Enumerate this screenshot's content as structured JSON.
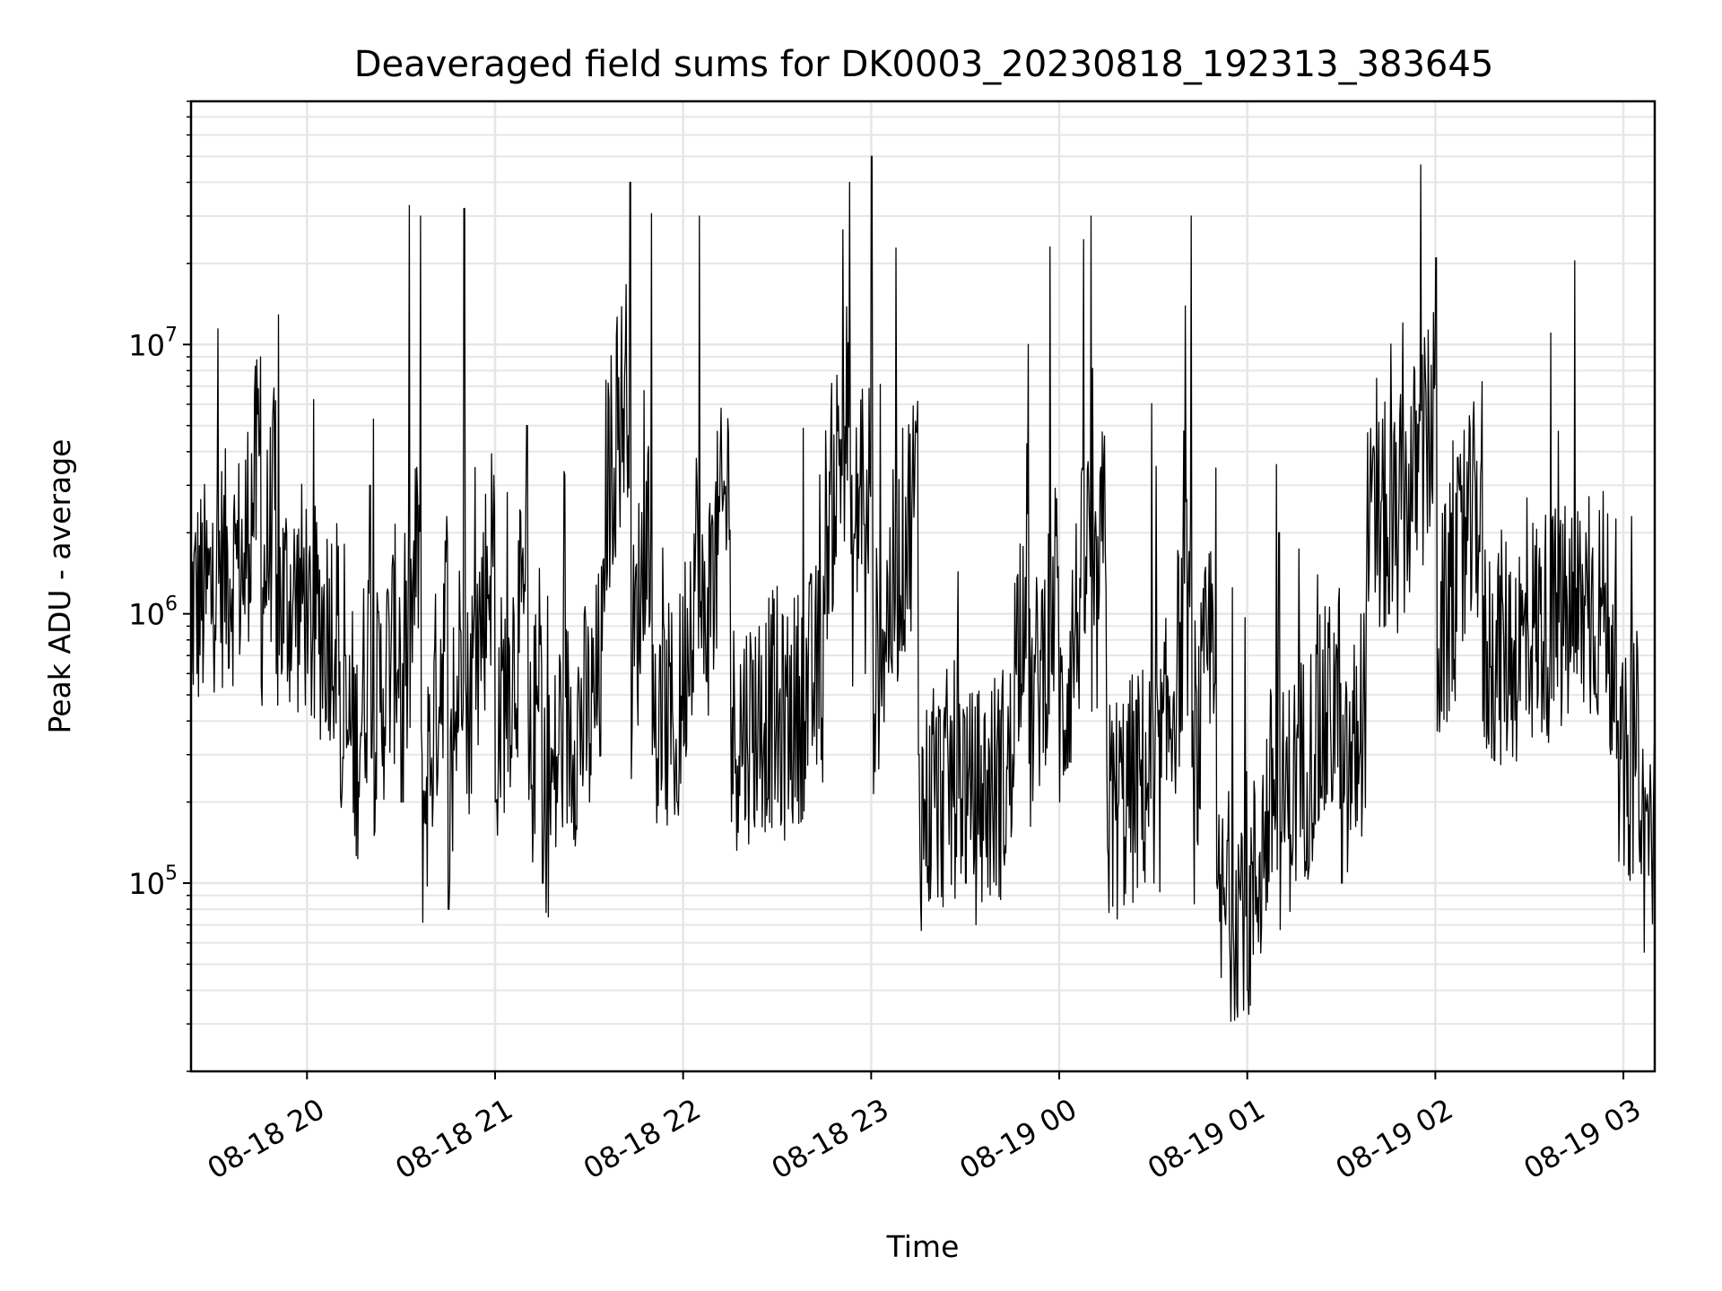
{
  "chart_data": {
    "type": "line",
    "title": "Deaveraged field sums for DK0003_20230818_192313_383645",
    "xlabel": "Time",
    "ylabel": "Peak ADU - average",
    "yscale": "log",
    "ylim": [
      20000,
      80000000
    ],
    "xlim": [
      "2023-08-18 19:23",
      "2023-08-19 03:10"
    ],
    "grid": true,
    "line_color": "#000000",
    "grid_color": "#e6e6e6",
    "x_ticks": [
      {
        "value": "2023-08-18 20:00",
        "label": "08-18 20"
      },
      {
        "value": "2023-08-18 21:00",
        "label": "08-18 21"
      },
      {
        "value": "2023-08-18 22:00",
        "label": "08-18 22"
      },
      {
        "value": "2023-08-18 23:00",
        "label": "08-18 23"
      },
      {
        "value": "2023-08-19 00:00",
        "label": "08-19 00"
      },
      {
        "value": "2023-08-19 01:00",
        "label": "08-19 01"
      },
      {
        "value": "2023-08-19 02:00",
        "label": "08-19 02"
      },
      {
        "value": "2023-08-19 03:00",
        "label": "08-19 03"
      }
    ],
    "y_ticks": [
      {
        "value": 100000,
        "base": "10",
        "exp": "5"
      },
      {
        "value": 1000000,
        "base": "10",
        "exp": "6"
      },
      {
        "value": 10000000,
        "base": "10",
        "exp": "7"
      }
    ],
    "series": [
      {
        "x": [
          "2023-08-18 19:23",
          "2023-08-18 19:30",
          "2023-08-18 19:40",
          "2023-08-18 19:45",
          "2023-08-18 19:50",
          "2023-08-18 19:55",
          "2023-08-18 20:00",
          "2023-08-18 20:10",
          "2023-08-18 20:15",
          "2023-08-18 20:20",
          "2023-08-18 20:30",
          "2023-08-18 20:36",
          "2023-08-18 20:45",
          "2023-08-18 20:50",
          "2023-08-18 21:00",
          "2023-08-18 21:10",
          "2023-08-18 21:15",
          "2023-08-18 21:20",
          "2023-08-18 21:30",
          "2023-08-18 21:35",
          "2023-08-18 21:43",
          "2023-08-18 21:50",
          "2023-08-18 21:58",
          "2023-08-18 22:05",
          "2023-08-18 22:15",
          "2023-08-18 22:30",
          "2023-08-18 22:45",
          "2023-08-18 22:53",
          "2023-08-18 22:58",
          "2023-08-18 23:00",
          "2023-08-18 23:15",
          "2023-08-18 23:30",
          "2023-08-18 23:45",
          "2023-08-18 23:50",
          "2023-08-19 00:00",
          "2023-08-19 00:10",
          "2023-08-19 00:15",
          "2023-08-19 00:30",
          "2023-08-19 00:42",
          "2023-08-19 00:50",
          "2023-08-19 01:00",
          "2023-08-19 01:10",
          "2023-08-19 01:30",
          "2023-08-19 01:38",
          "2023-08-19 01:45",
          "2023-08-19 02:00",
          "2023-08-19 02:15",
          "2023-08-19 02:30",
          "2023-08-19 02:45",
          "2023-08-19 02:55",
          "2023-08-19 02:58",
          "2023-08-19 03:05",
          "2023-08-19 03:10"
        ],
        "y": [
          600000,
          800000,
          1000000,
          9000000,
          600000,
          800000,
          600000,
          500000,
          150000,
          3000000,
          200000,
          30000000,
          80000,
          32000000,
          200000,
          5000000,
          100000,
          300000,
          200000,
          1500000,
          40000000,
          300000,
          200000,
          30000000,
          400000,
          200000,
          1000000,
          40000000,
          600000,
          50000000,
          300000,
          100000,
          300000,
          10000000,
          200000,
          30000000,
          300000,
          100000,
          30000000,
          100000,
          40000,
          2000000,
          100000,
          2000000,
          1000000,
          21000000,
          400000,
          500000,
          600000,
          600000,
          400000,
          120000,
          80000
        ]
      }
    ]
  }
}
